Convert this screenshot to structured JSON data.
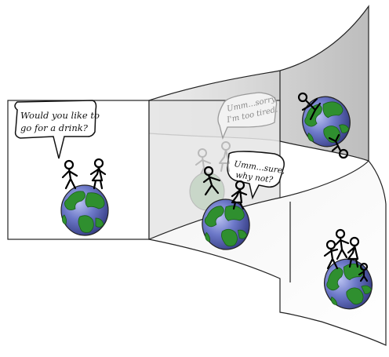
{
  "comic": {
    "panel_1": {
      "speech": [
        "Would you like to",
        "go for a drink?"
      ]
    },
    "panel_2": {
      "speech_faded": [
        "Umm...sorry,",
        "I'm too tired."
      ],
      "speech": [
        "Umm...sure,",
        "why not?"
      ]
    }
  },
  "colors": {
    "globe_ocean": "#5a66b8",
    "globe_land": "#2f8f2f",
    "panel_shade": "#d9d9d9",
    "panel_border": "#222222"
  }
}
